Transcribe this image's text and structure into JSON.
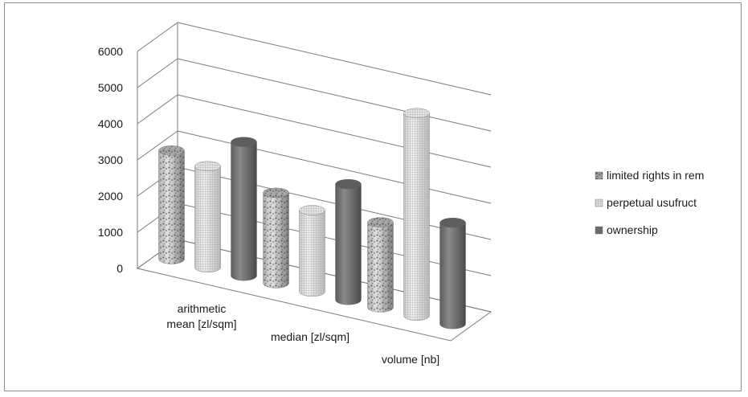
{
  "chart_data": {
    "type": "bar",
    "categories": [
      [
        "arithmetic",
        "mean [zl/sqm]"
      ],
      [
        "median [zl/sqm]"
      ],
      [
        "volume [nb]"
      ]
    ],
    "series": [
      {
        "name": "limited rights in rem",
        "values": [
          3000,
          2500,
          2350
        ],
        "color": "#8e8e8e",
        "pattern": "speckled"
      },
      {
        "name": "perpetual usufruct",
        "values": [
          2800,
          2250,
          5600
        ],
        "color": "#d8d8d8",
        "pattern": "fine-grid"
      },
      {
        "name": "ownership",
        "values": [
          3700,
          3200,
          2800
        ],
        "color": "#6e6e6e",
        "pattern": "solid"
      }
    ],
    "y_ticks": [
      "0",
      "1000",
      "2000",
      "3000",
      "4000",
      "5000",
      "6000"
    ],
    "ylim": [
      0,
      6000
    ],
    "grid": true,
    "legend_position": "right",
    "style": "3d-cylinder"
  }
}
